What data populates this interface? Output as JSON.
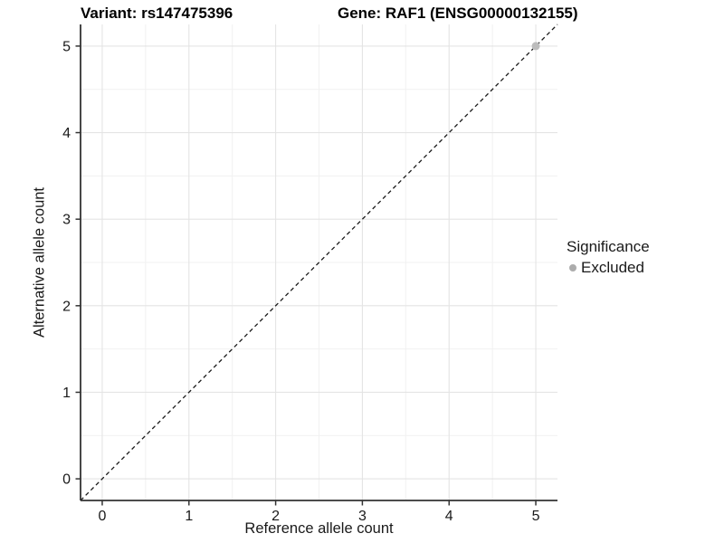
{
  "chart_data": {
    "type": "scatter",
    "title_left": "Variant: rs147475396",
    "title_right": "Gene: RAF1 (ENSG00000132155)",
    "xlabel": "Reference allele count",
    "ylabel": "Alternative allele count",
    "xlim": [
      -0.25,
      5.25
    ],
    "ylim": [
      -0.25,
      5.25
    ],
    "xticks": [
      0,
      1,
      2,
      3,
      4,
      5
    ],
    "yticks": [
      0,
      1,
      2,
      3,
      4,
      5
    ],
    "minor_grid_step": 0.5,
    "grid": "on",
    "identity_line": {
      "style": "dashed",
      "x1": -0.25,
      "y1": -0.25,
      "x2": 5.25,
      "y2": 5.25,
      "color": "#1a1a1a"
    },
    "series": [
      {
        "name": "Excluded",
        "color": "#bcbcbc",
        "points": [
          {
            "x": 5,
            "y": 5
          }
        ]
      }
    ],
    "legend": {
      "title": "Significance",
      "position": "right",
      "entries": [
        {
          "label": "Excluded",
          "color": "#acacac",
          "marker": "circle"
        }
      ]
    },
    "colors": {
      "background": "#ffffff",
      "grid_major": "#e4e4e4",
      "grid_minor": "#f1f1f1",
      "axis_line": "#333333",
      "tick_mark": "#333333",
      "tick_label": "#1a1a1a",
      "title_text": "#000000"
    }
  }
}
